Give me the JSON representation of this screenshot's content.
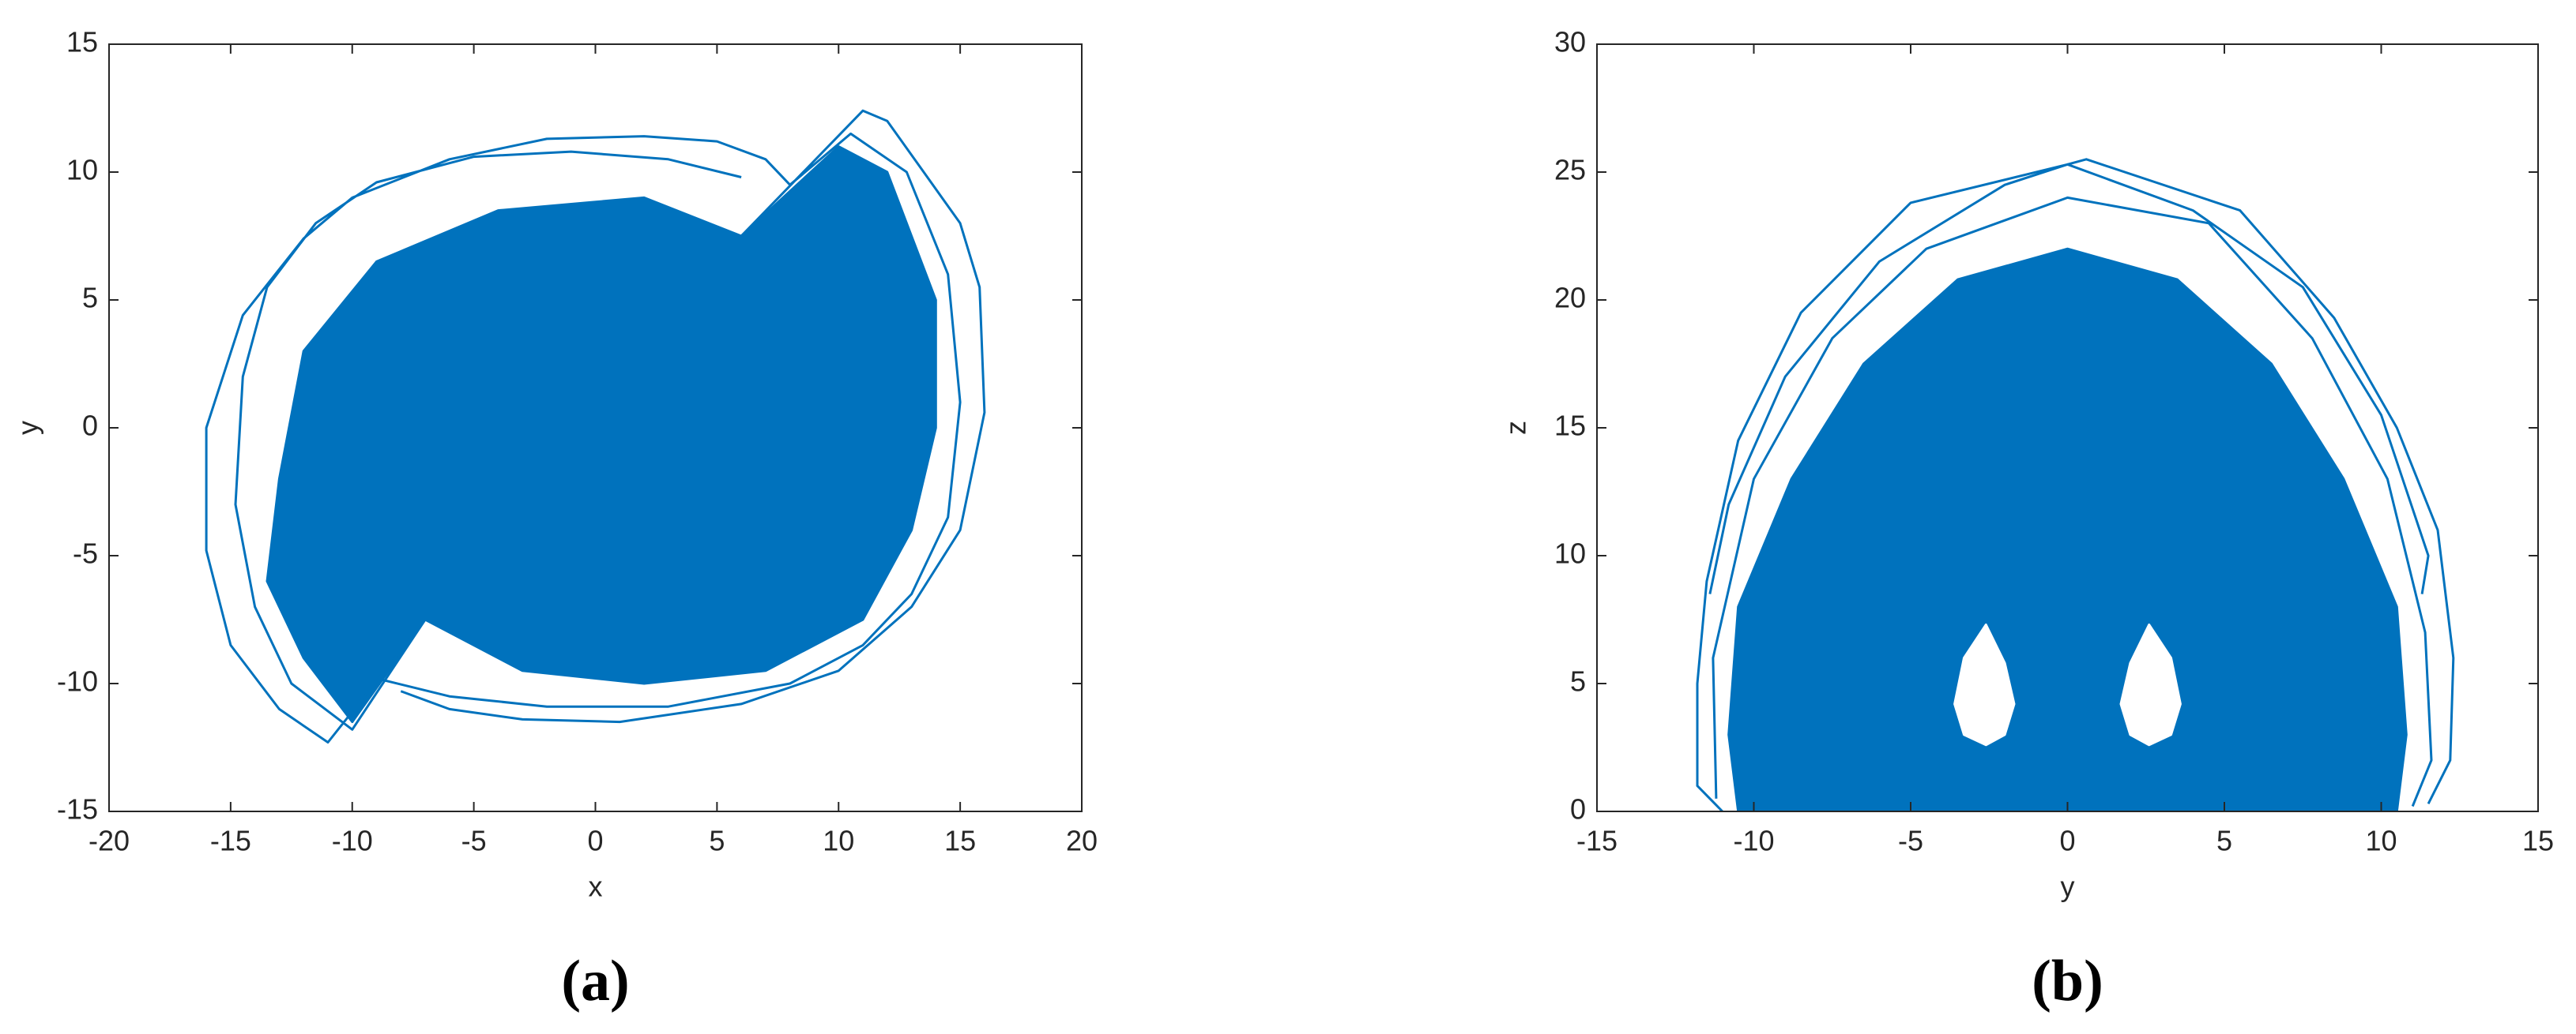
{
  "chart_data": [
    {
      "type": "line",
      "xlabel": "x",
      "ylabel": "y",
      "panel_label": "(a)",
      "xlim": [
        -20,
        20
      ],
      "xticks": [
        -20,
        -15,
        -10,
        -5,
        0,
        5,
        10,
        15,
        20
      ],
      "ylim": [
        -15,
        15
      ],
      "yticks": [
        -15,
        -10,
        -5,
        0,
        5,
        10,
        15
      ],
      "series": [
        {
          "color": "#0072bd",
          "fill": true,
          "x": [
            -13,
            -12,
            -9,
            -4,
            2,
            6,
            10,
            12,
            14,
            14,
            13,
            11,
            7,
            2,
            -3,
            -7,
            -10,
            -12,
            -13.5
          ],
          "y": [
            -2,
            3,
            6.5,
            8.5,
            9,
            7.5,
            11,
            10,
            5,
            0,
            -4,
            -7.5,
            -9.5,
            -10,
            -9.5,
            -7.5,
            -11.5,
            -9,
            -6
          ]
        },
        {
          "color": "#0072bd",
          "fill": false,
          "x": [
            -7,
            -11,
            -13,
            -15,
            -16,
            -16,
            -14.5,
            -12,
            -10,
            -6,
            -2,
            2,
            5,
            7,
            8,
            null,
            6,
            11,
            12,
            13.5,
            15,
            15.8,
            16,
            15,
            13,
            10,
            6,
            1,
            -3,
            -6,
            -8,
            null,
            -7,
            -10,
            -12.5,
            -14,
            -14.8,
            -14.5,
            -13.5,
            -11.5,
            -9,
            -5,
            -1,
            3,
            6,
            null,
            8,
            10.5,
            12.8,
            14.5,
            15,
            14.5,
            13,
            11,
            8,
            3,
            -2,
            -6,
            -9
          ],
          "y": [
            -7.5,
            -12.3,
            -11,
            -8.5,
            -4.8,
            0,
            4.4,
            7.4,
            9,
            10.5,
            11.3,
            11.4,
            11.2,
            10.5,
            9.5,
            null,
            7.5,
            12.4,
            12,
            10,
            8,
            5.5,
            0.6,
            -4,
            -7,
            -9.5,
            -10.8,
            -11.5,
            -11.4,
            -11,
            -10.3,
            null,
            -7.5,
            -11.8,
            -10,
            -7,
            -3,
            2,
            5.5,
            8,
            9.6,
            10.6,
            10.8,
            10.5,
            9.8,
            null,
            9.5,
            11.5,
            10,
            6,
            1,
            -3.5,
            -6.5,
            -8.5,
            -10,
            -10.9,
            -10.9,
            -10.5,
            -9.8
          ]
        }
      ]
    },
    {
      "type": "line",
      "xlabel": "y",
      "ylabel": "z",
      "panel_label": "(b)",
      "xlim": [
        -15,
        15
      ],
      "xticks": [
        -15,
        -10,
        -5,
        0,
        5,
        10,
        15
      ],
      "ylim": [
        0,
        30
      ],
      "yticks": [
        0,
        5,
        10,
        15,
        20,
        25,
        30
      ],
      "series": [
        {
          "color": "#0072bd",
          "fill": true,
          "x": [
            -10.5,
            -10.8,
            -10.5,
            -8.8,
            -6.5,
            -3.5,
            0,
            3.5,
            6.5,
            8.8,
            10.5,
            10.8,
            10.5
          ],
          "y": [
            0,
            3,
            8,
            13,
            17.5,
            20.8,
            22,
            20.8,
            17.5,
            13,
            8,
            3,
            0
          ]
        },
        {
          "color": "#ffffff",
          "fill": true,
          "x": [
            -2.6,
            -3.3,
            -3.6,
            -3.3,
            -2.6,
            -2,
            -1.7,
            -2,
            -2.6
          ],
          "y": [
            7.3,
            6,
            4.2,
            3,
            2.6,
            3,
            4.2,
            5.8,
            7.3
          ]
        },
        {
          "color": "#ffffff",
          "fill": true,
          "x": [
            2.6,
            2,
            1.7,
            2,
            2.6,
            3.3,
            3.6,
            3.3,
            2.6
          ],
          "y": [
            7.3,
            5.8,
            4.2,
            3,
            2.6,
            3,
            4.2,
            6,
            7.3
          ]
        },
        {
          "color": "#0072bd",
          "fill": false,
          "x": [
            -11,
            -11.8,
            -11.8,
            -11.5,
            -10.5,
            -8.5,
            -5,
            0,
            0.6,
            5.5,
            8.5,
            10.5,
            11.8,
            12.3,
            12.2,
            11.5,
            null,
            -11.4,
            -10.8,
            -9,
            -6,
            -2,
            0,
            4,
            7.5,
            10,
            11.5,
            11.3,
            null,
            -11.2,
            -11.3,
            -10,
            -7.5,
            -4.5,
            0,
            4.5,
            7.8,
            10.2,
            11.4,
            11.6,
            11
          ],
          "y": [
            0,
            1,
            5,
            9,
            14.5,
            19.5,
            23.8,
            25.3,
            25.5,
            23.5,
            19.3,
            15,
            11,
            6,
            2,
            0.3,
            null,
            8.5,
            12,
            17,
            21.5,
            24.5,
            25.3,
            23.5,
            20.5,
            15.5,
            10,
            8.5,
            null,
            0.5,
            6,
            13,
            18.5,
            22,
            24,
            23,
            18.5,
            13,
            7,
            2,
            0.2
          ]
        }
      ]
    }
  ]
}
